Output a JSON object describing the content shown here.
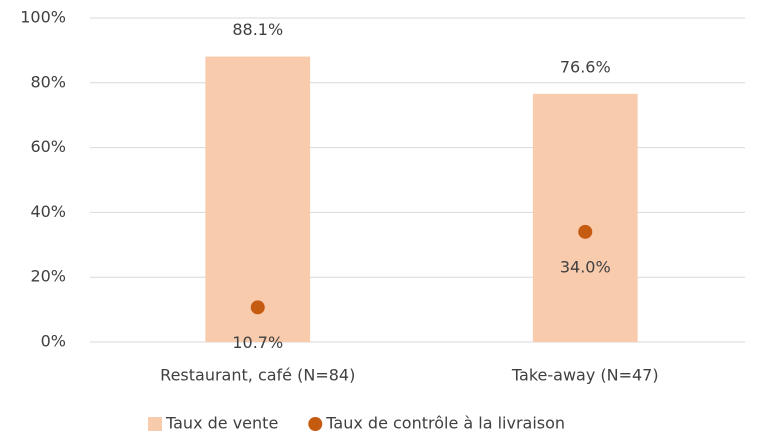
{
  "chart_data": {
    "type": "bar",
    "categories": [
      "Restaurant, café (N=84)",
      "Take-away (N=47)"
    ],
    "series": [
      {
        "name": "Taux de vente",
        "type": "bar",
        "color": "#f8cbad",
        "values": [
          88.1,
          76.6
        ],
        "value_labels": [
          "88.1%",
          "76.6%"
        ]
      },
      {
        "name": "Taux de contrôle à la livraison",
        "type": "scatter",
        "color": "#c55a11",
        "values": [
          10.7,
          34.0
        ],
        "value_labels": [
          "10.7%",
          "34.0%"
        ]
      }
    ],
    "ylim": [
      0,
      100
    ],
    "yticks": [
      {
        "value": 0,
        "label": "0%"
      },
      {
        "value": 20,
        "label": "20%"
      },
      {
        "value": 40,
        "label": "40%"
      },
      {
        "value": 60,
        "label": "60%"
      },
      {
        "value": 80,
        "label": "80%"
      },
      {
        "value": 100,
        "label": "100%"
      }
    ],
    "grid": true,
    "legend": "bottom"
  }
}
